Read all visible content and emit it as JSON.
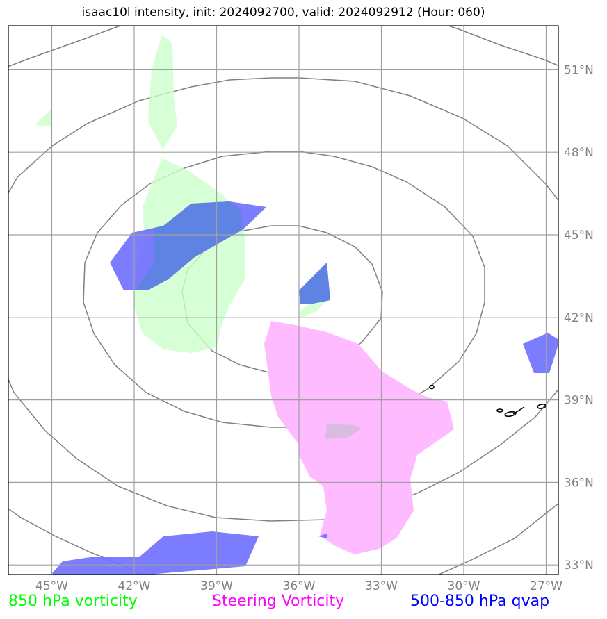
{
  "title": "isaac10l intensity, init: 2024092700, valid: 2024092912 (Hour: 060)",
  "map": {
    "projection": "regional lat/lon",
    "lon_range": [
      -46.5,
      -26.5
    ],
    "lat_range": [
      32.5,
      52.5
    ],
    "lon_ticks": [
      {
        "value": -45,
        "label": "45°W"
      },
      {
        "value": -42,
        "label": "42°W"
      },
      {
        "value": -39,
        "label": "39°W"
      },
      {
        "value": -36,
        "label": "36°W"
      },
      {
        "value": -33,
        "label": "33°W"
      },
      {
        "value": -30,
        "label": "30°W"
      },
      {
        "value": -27,
        "label": "27°W"
      }
    ],
    "lat_ticks": [
      {
        "value": 51,
        "label": "51°N"
      },
      {
        "value": 48,
        "label": "48°N"
      },
      {
        "value": 45,
        "label": "45°N"
      },
      {
        "value": 42,
        "label": "42°N"
      },
      {
        "value": 39,
        "label": "39°N"
      },
      {
        "value": 36,
        "label": "36°N"
      },
      {
        "value": 33,
        "label": "33°N"
      }
    ],
    "gridlines": true,
    "range_rings": "concentric rings around storm center",
    "features": [
      "Azores islands outline"
    ]
  },
  "legend": [
    {
      "label": "850 hPa vorticity",
      "color": "#00ff00"
    },
    {
      "label": "Steering Vorticity",
      "color": "#ff00ff"
    },
    {
      "label": "500-850 hPa qvap",
      "color": "#0000ff"
    }
  ],
  "colors": {
    "vorticity_fill": "#ccffcc",
    "steering_fill": "#ffbbff",
    "qvap_fill": "#6e6eff",
    "grid": "#a0a0a0",
    "rings": "#808080",
    "tick_label": "#808080"
  }
}
